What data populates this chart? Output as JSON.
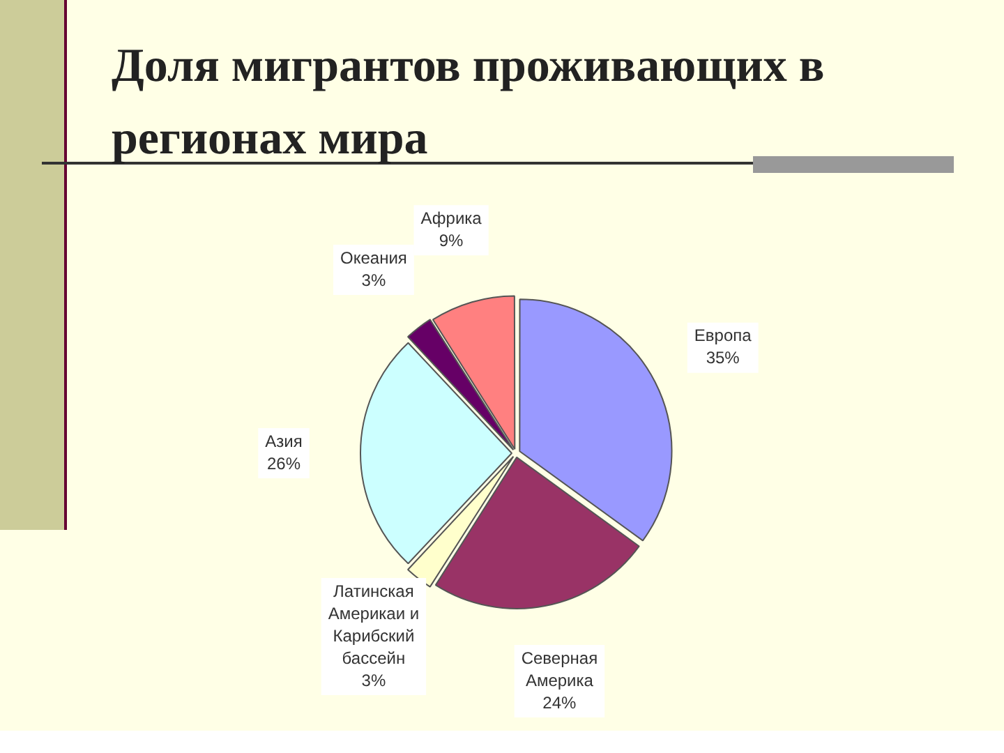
{
  "chart_data": {
    "type": "pie",
    "title": "Доля мигрантов проживающих в регионах мира",
    "categories": [
      "Европа",
      "Северная Америка",
      "Латинская Америкаи и Карибский бассейн",
      "Азия",
      "Океания",
      "Африка"
    ],
    "values": [
      35,
      24,
      3,
      26,
      3,
      9
    ],
    "value_labels": [
      "35%",
      "24%",
      "3%",
      "26%",
      "3%",
      "9%"
    ],
    "colors": [
      "#9999ff",
      "#993366",
      "#ffffcc",
      "#ccffff",
      "#660066",
      "#ff8080"
    ],
    "legend": false
  }
}
